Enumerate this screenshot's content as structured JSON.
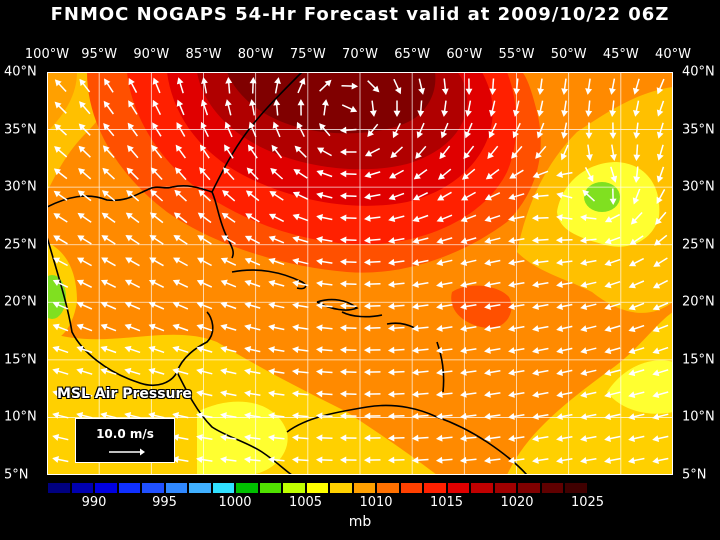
{
  "title": "FNMOC NOGAPS 54-Hr Forecast valid at 2009/10/22 06Z",
  "lon_labels": [
    "100°W",
    "95°W",
    "90°W",
    "85°W",
    "80°W",
    "75°W",
    "70°W",
    "65°W",
    "60°W",
    "55°W",
    "50°W",
    "45°W",
    "40°W"
  ],
  "lat_labels": [
    "40°N",
    "35°N",
    "30°N",
    "25°N",
    "20°N",
    "15°N",
    "10°N",
    "5°N"
  ],
  "field_label": "MSL Air Pressure",
  "vector_legend": "10.0 m/s",
  "colorbar": {
    "unit": "mb",
    "tick_labels": [
      "990",
      "995",
      "1000",
      "1005",
      "1010",
      "1015",
      "1020",
      "1025"
    ],
    "colors": [
      "#000080",
      "#0000b0",
      "#0000e0",
      "#1030ff",
      "#2050ff",
      "#3088ff",
      "#40b0ff",
      "#30e0ff",
      "#00c000",
      "#50e000",
      "#c0ff00",
      "#ffff00",
      "#ffd000",
      "#ffa000",
      "#ff7000",
      "#ff4000",
      "#ff2000",
      "#e00000",
      "#c00000",
      "#a00000",
      "#800000",
      "#600000",
      "#400000"
    ]
  },
  "colors": {
    "high_core": "#8b0000",
    "mid_high": "#ff3000",
    "moderate": "#ff8000",
    "lower": "#ffd000",
    "low": "#ffff00",
    "lowest": "#80e020"
  }
}
